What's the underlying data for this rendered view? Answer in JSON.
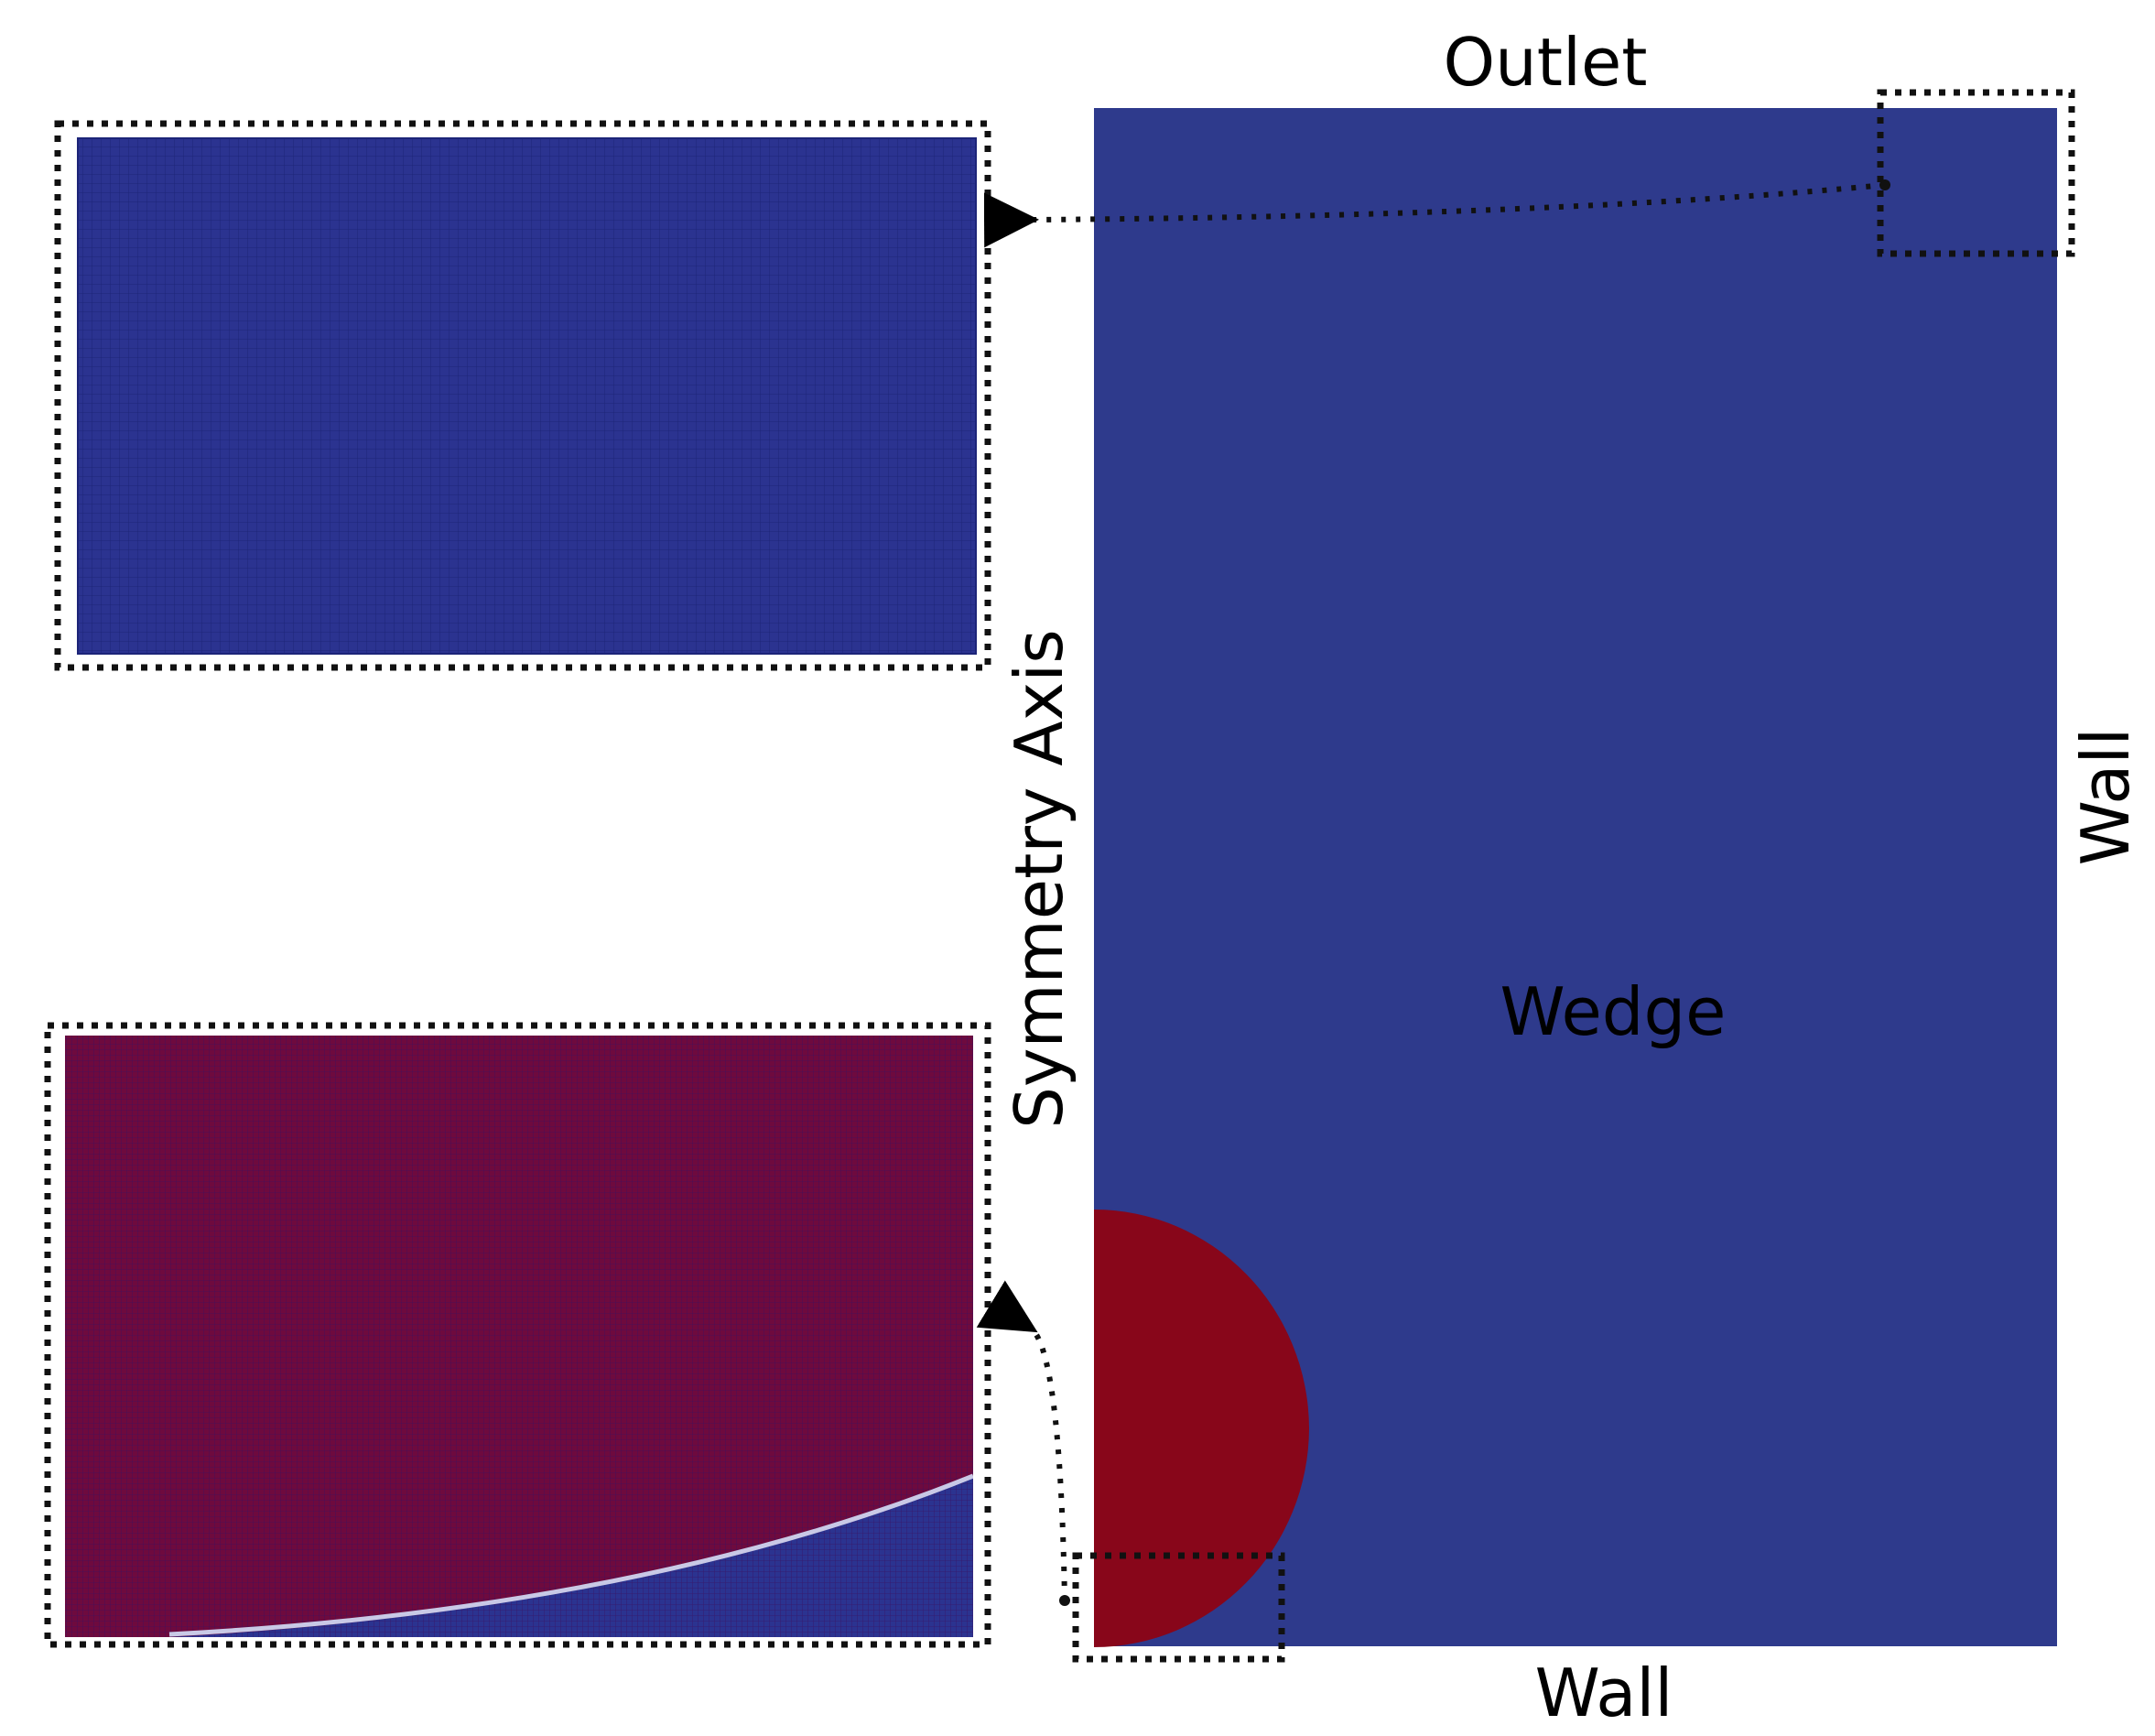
{
  "labels": {
    "outlet": "Outlet",
    "wall_bottom": "Wall",
    "wall_right": "Wall",
    "symmetry_axis": "Symmetry Axis",
    "wedge": "Wedge"
  },
  "colors": {
    "domain_blue": "#2e3a8c",
    "mesh_blue": "#2b3390",
    "mesh_line": "#1c2478",
    "bubble_red": "#88061a",
    "zoom_red": "#6e0a3e",
    "interface_light": "#c9c9e6",
    "outline": "#111111"
  }
}
